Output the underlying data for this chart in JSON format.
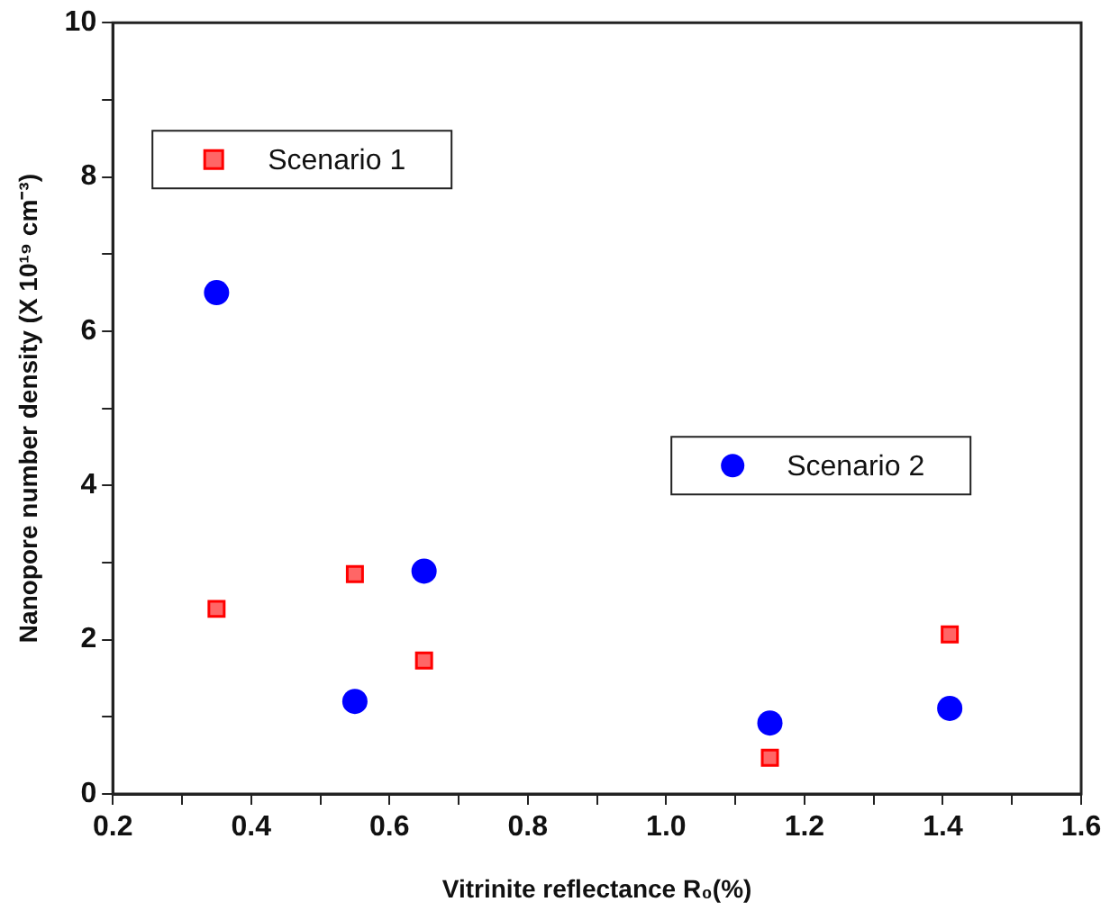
{
  "chart_data": {
    "type": "scatter",
    "xlabel": "Vitrinite reflectance R₀(%)",
    "ylabel": "Nanopore number density (X 10¹⁹ cm⁻³)",
    "xlim": [
      0.2,
      1.6
    ],
    "xticks": [
      {
        "value": 0.2,
        "label": "0.2"
      },
      {
        "value": 0.3,
        "label": null
      },
      {
        "value": 0.4,
        "label": "0.4"
      },
      {
        "value": 0.5,
        "label": null
      },
      {
        "value": 0.6,
        "label": "0.6"
      },
      {
        "value": 0.7,
        "label": null
      },
      {
        "value": 0.8,
        "label": "0.8"
      },
      {
        "value": 0.9,
        "label": null
      },
      {
        "value": 1,
        "label": "1.0"
      },
      {
        "value": 1.1,
        "label": null
      },
      {
        "value": 1.2,
        "label": "1.2"
      },
      {
        "value": 1.3,
        "label": null
      },
      {
        "value": 1.4,
        "label": "1.4"
      },
      {
        "value": 1.5,
        "label": null
      },
      {
        "value": 1.6,
        "label": "1.6"
      }
    ],
    "ylim": [
      0,
      10
    ],
    "yticks": [
      0,
      {
        "value": 1,
        "label": null
      },
      2,
      {
        "value": 3,
        "label": null
      },
      4,
      {
        "value": 5,
        "label": null
      },
      6,
      {
        "value": 7,
        "label": null
      },
      8,
      {
        "value": 9,
        "label": null
      },
      10
    ],
    "grid": false,
    "legend": "top left",
    "series": [
      {
        "name": "Scenario 1",
        "color": "#ff0000",
        "marker": "square",
        "x": [
          0.35,
          0.55,
          0.65,
          1.15,
          1.41
        ],
        "values": [
          2.4,
          2.85,
          1.73,
          0.47,
          2.07
        ]
      },
      {
        "name": "Scenario 2",
        "color": "#0000ff",
        "marker": "circle",
        "x": [
          0.35,
          0.55,
          0.65,
          1.15,
          1.41
        ],
        "values": [
          6.5,
          1.2,
          2.89,
          0.92,
          1.11
        ]
      }
    ]
  }
}
